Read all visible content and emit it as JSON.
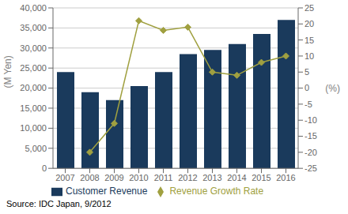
{
  "chart_data": {
    "type": "bar",
    "categories": [
      "2007",
      "2008",
      "2009",
      "2010",
      "2011",
      "2012",
      "2013",
      "2014",
      "2015",
      "2016"
    ],
    "series": [
      {
        "name": "Customer Revenue",
        "type": "bar",
        "color": "#1a3a5c",
        "values": [
          24000,
          19000,
          17000,
          20500,
          24000,
          28500,
          29500,
          31000,
          33500,
          37000
        ]
      },
      {
        "name": "Revenue Growth Rate",
        "type": "line",
        "color": "#a0a040",
        "marker": "diamond",
        "axis": "y2",
        "values": [
          null,
          -20,
          -11,
          21,
          18,
          19,
          5,
          4,
          8,
          10
        ]
      }
    ],
    "ylabel": "(M Yen)",
    "y2label": "(%)",
    "ylim": [
      0,
      40000
    ],
    "yticks": [
      0,
      {
        "value": 5000,
        "label": "5,000"
      },
      {
        "value": 10000,
        "label": "10,000"
      },
      {
        "value": 15000,
        "label": "15,000"
      },
      {
        "value": 20000,
        "label": "20,000"
      },
      {
        "value": 25000,
        "label": "25,000"
      },
      {
        "value": 30000,
        "label": "30,000"
      },
      {
        "value": 35000,
        "label": "35,000"
      },
      {
        "value": 40000,
        "label": "40,000"
      }
    ],
    "y2lim": [
      -25,
      25
    ],
    "y2ticks": [
      -25,
      -20,
      -15,
      -10,
      -5,
      0,
      5,
      10,
      15,
      20,
      25
    ],
    "grid": true,
    "legend": "bottom",
    "annotations": [
      "Source: IDC Japan, 9/2012"
    ]
  }
}
